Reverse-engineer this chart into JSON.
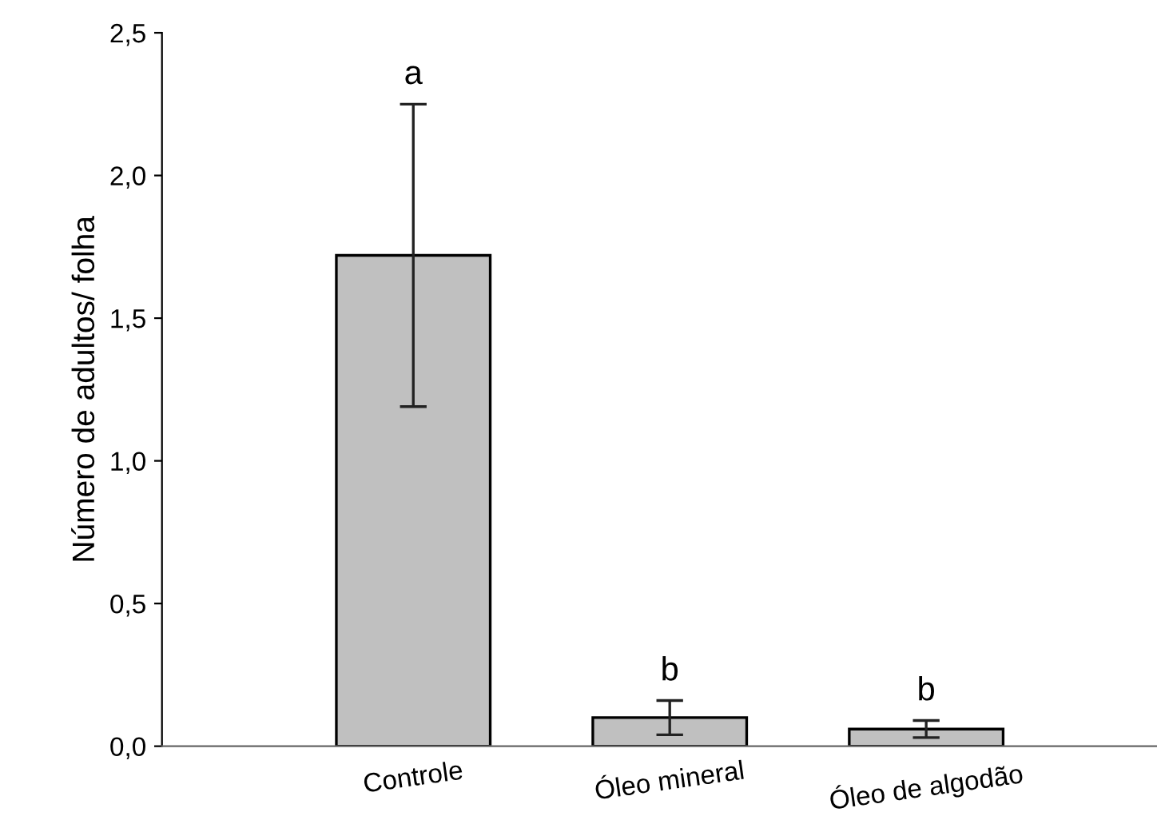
{
  "chart_data": {
    "type": "bar",
    "ylabel": "Número de adultos/ folha",
    "categories": [
      "Controle",
      "Óleo mineral",
      "Óleo de algodão"
    ],
    "values": [
      1.72,
      0.1,
      0.06
    ],
    "color": "#c0c0c0",
    "errors": [
      [
        1.19,
        2.25
      ],
      [
        0.04,
        0.16
      ],
      [
        0.03,
        0.09
      ]
    ],
    "ylim": [
      0,
      2.5
    ],
    "yticks": [
      {
        "value": 0,
        "label": "0,0"
      },
      {
        "value": 0.5,
        "label": "0,5"
      },
      {
        "value": 1.0,
        "label": "1,0"
      },
      {
        "value": 1.5,
        "label": "1,5"
      },
      {
        "value": 2.0,
        "label": "2,0"
      },
      {
        "value": 2.5,
        "label": "2,5"
      }
    ],
    "annotations": [
      {
        "text": "a",
        "x": "Controle",
        "y": 2.25
      },
      {
        "text": "b",
        "x": "Óleo mineral",
        "y": 0.16
      },
      {
        "text": "b",
        "x": "Óleo de algodão",
        "y": 0.09
      }
    ],
    "grid": false,
    "legend": false
  }
}
